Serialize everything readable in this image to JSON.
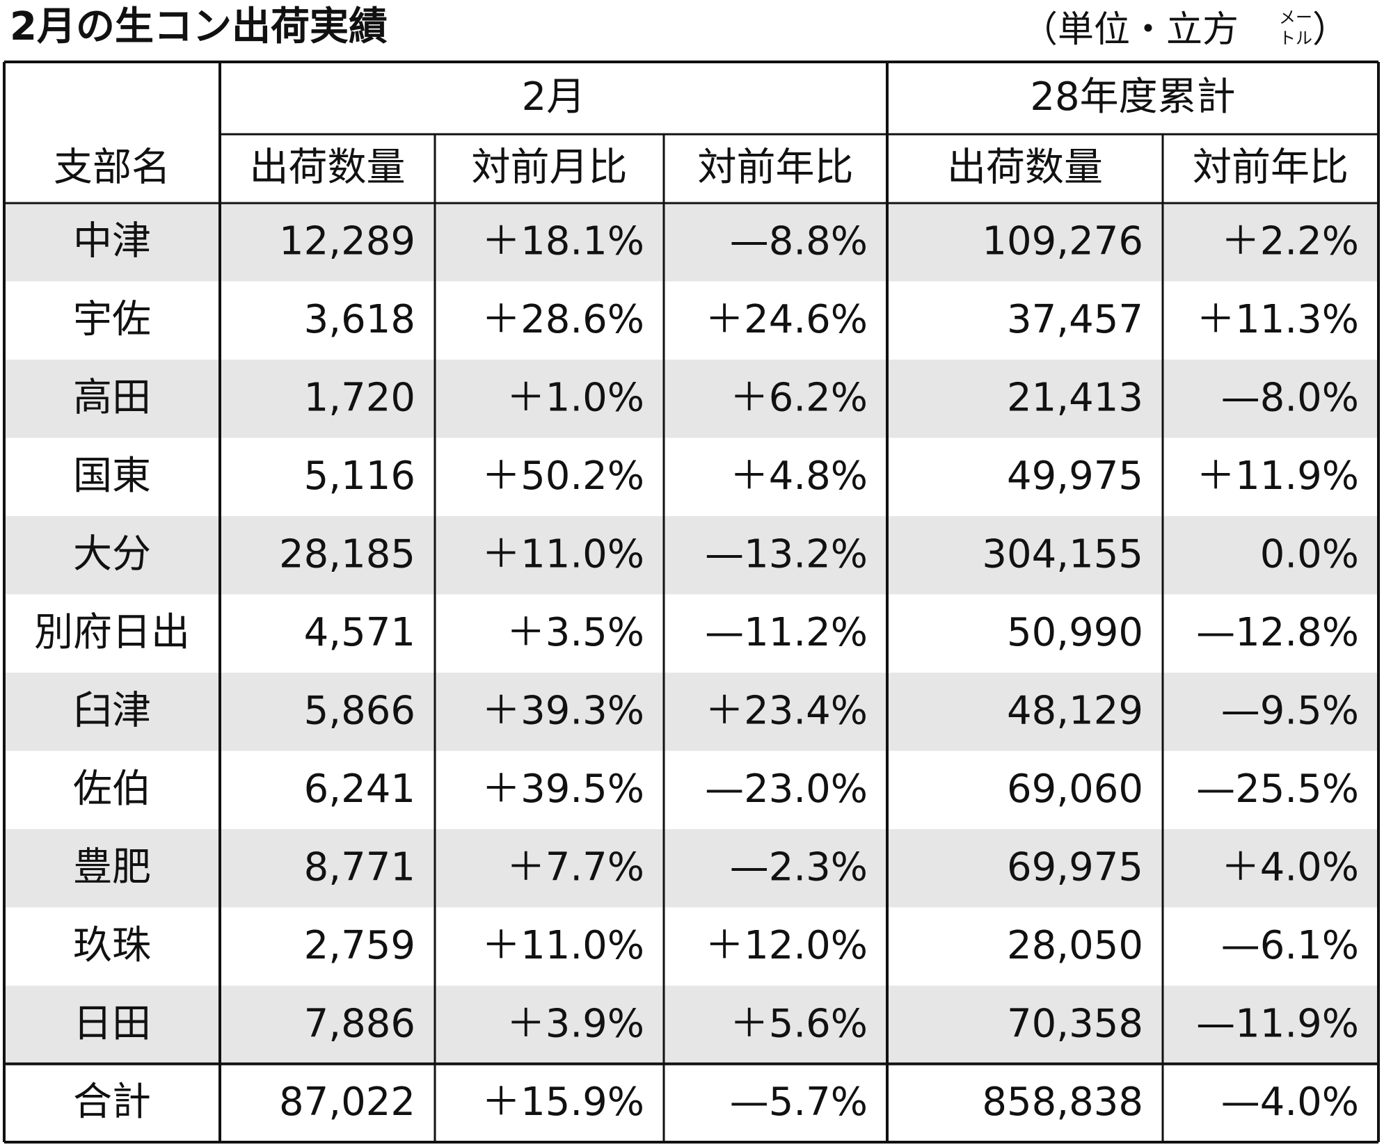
{
  "header": {
    "title": "2月の生コン出荷実績",
    "unit": {
      "prefix": "（単位・立方",
      "small_top": "メー",
      "small_bottom": "トル",
      "suffix": "）"
    }
  },
  "table": {
    "group_headers": [
      "2月",
      "28年度累計"
    ],
    "columns": [
      "支部名",
      "出荷数量",
      "対前月比",
      "対前年比",
      "出荷数量",
      "対前年比"
    ],
    "rows": [
      [
        "中津",
        "12,289",
        "＋18.1%",
        "—8.8%",
        "109,276",
        "＋2.2%"
      ],
      [
        "宇佐",
        "3,618",
        "＋28.6%",
        "＋24.6%",
        "37,457",
        "＋11.3%"
      ],
      [
        "高田",
        "1,720",
        "＋1.0%",
        "＋6.2%",
        "21,413",
        "—8.0%"
      ],
      [
        "国東",
        "5,116",
        "＋50.2%",
        "＋4.8%",
        "49,975",
        "＋11.9%"
      ],
      [
        "大分",
        "28,185",
        "＋11.0%",
        "—13.2%",
        "304,155",
        "0.0%"
      ],
      [
        "別府日出",
        "4,571",
        "＋3.5%",
        "—11.2%",
        "50,990",
        "—12.8%"
      ],
      [
        "臼津",
        "5,866",
        "＋39.3%",
        "＋23.4%",
        "48,129",
        "—9.5%"
      ],
      [
        "佐伯",
        "6,241",
        "＋39.5%",
        "—23.0%",
        "69,060",
        "—25.5%"
      ],
      [
        "豊肥",
        "8,771",
        "＋7.7%",
        "—2.3%",
        "69,975",
        "＋4.0%"
      ],
      [
        "玖珠",
        "2,759",
        "＋11.0%",
        "＋12.0%",
        "28,050",
        "—6.1%"
      ],
      [
        "日田",
        "7,886",
        "＋3.9%",
        "＋5.6%",
        "70,358",
        "—11.9%"
      ]
    ],
    "total": [
      "合計",
      "87,022",
      "＋15.9%",
      "—5.7%",
      "858,838",
      "—4.0%"
    ]
  }
}
